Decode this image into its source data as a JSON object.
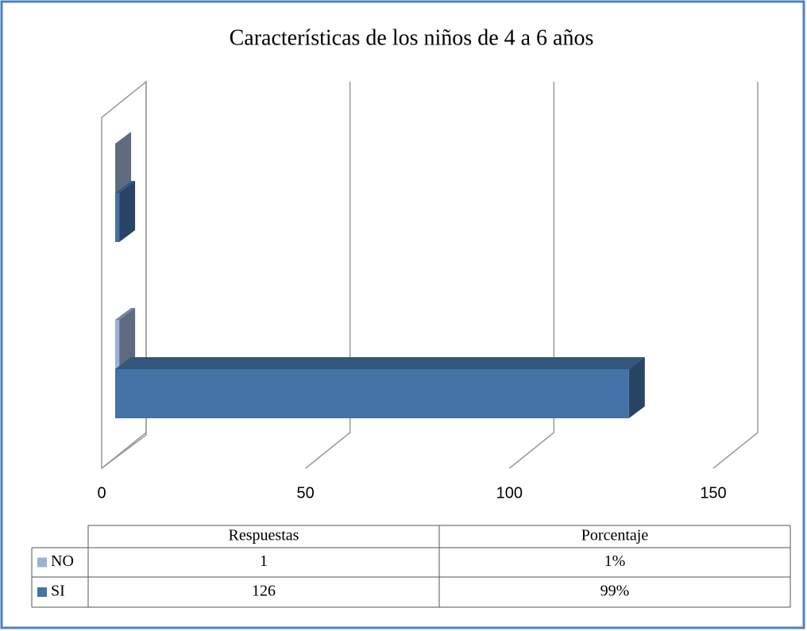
{
  "chart_data": {
    "type": "bar3d",
    "title": "Características de los niños de 4 a 6 años",
    "categories": [
      "Respuestas",
      "Porcentaje"
    ],
    "series": [
      {
        "name": "NO",
        "color": "#9bb1d6",
        "values": [
          1,
          0.01
        ],
        "value_labels": [
          "1",
          "1%"
        ]
      },
      {
        "name": "SI",
        "color": "#4572a7",
        "values": [
          126,
          0.99
        ],
        "value_labels": [
          "126",
          "99%"
        ]
      }
    ],
    "xlim": [
      0,
      150
    ],
    "xticks": [
      0,
      50,
      100,
      150
    ],
    "grid": true
  }
}
